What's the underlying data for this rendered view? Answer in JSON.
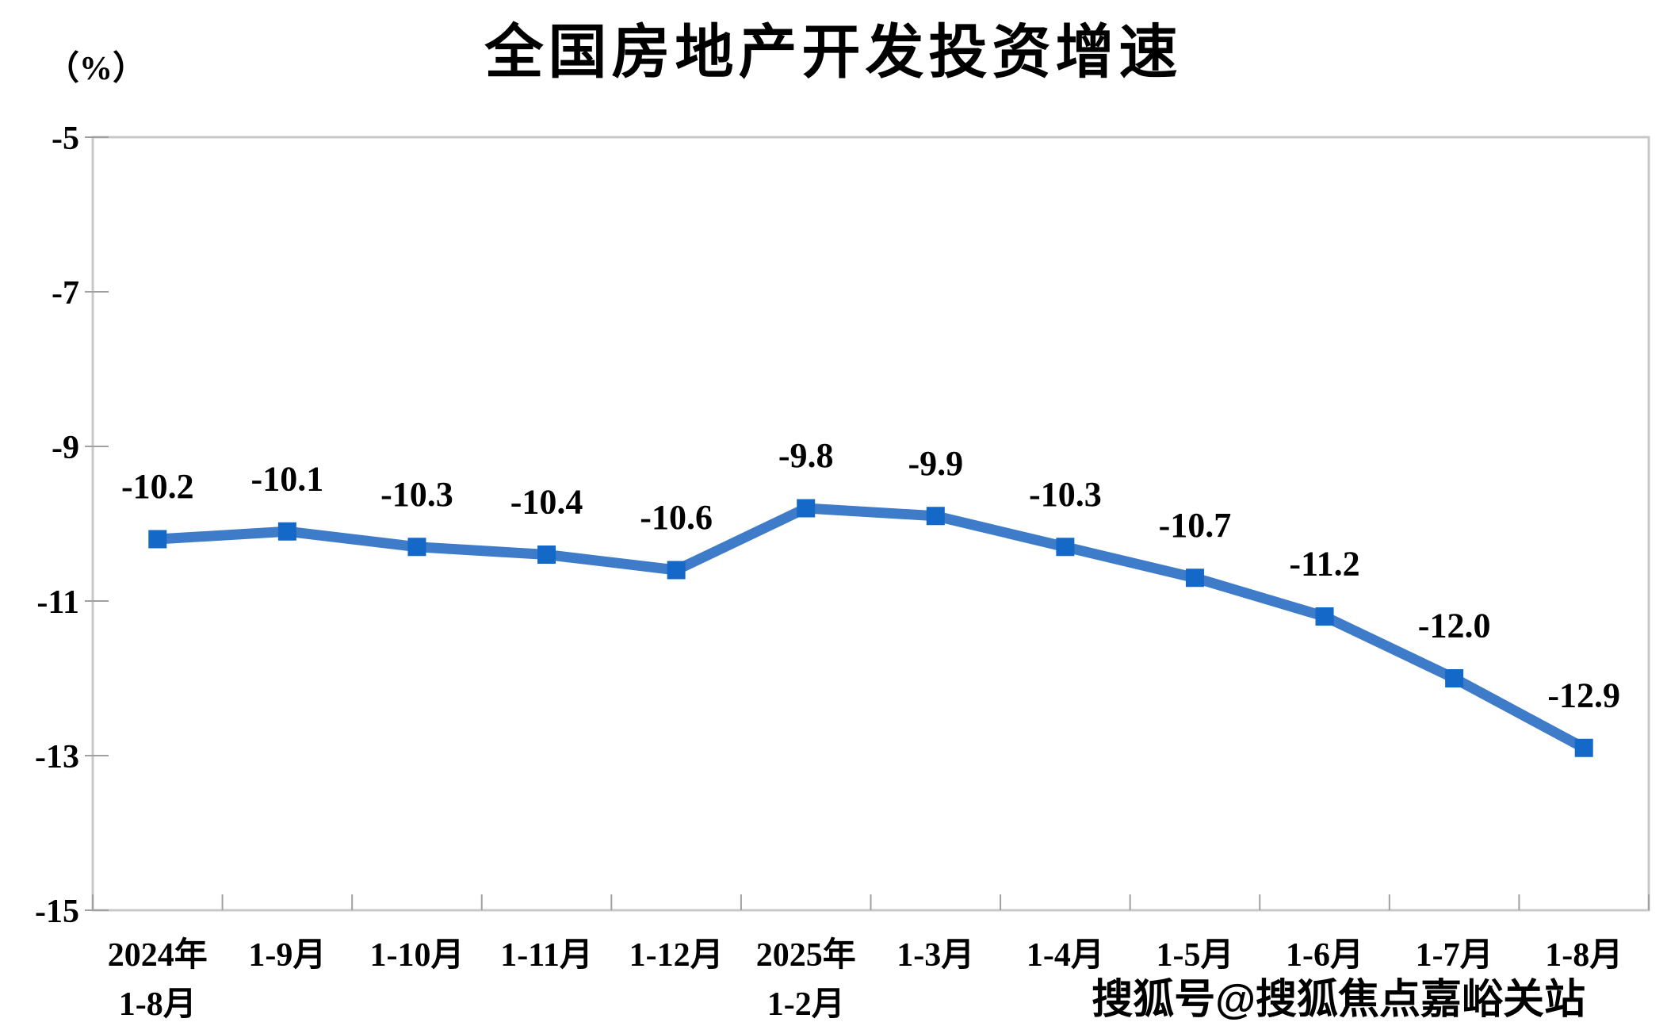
{
  "chart": {
    "title": "全国房地产开发投资增速",
    "unit_label": "（%）",
    "watermark": "搜狐号@搜狐焦点嘉峪关站"
  },
  "chart_data": {
    "type": "line",
    "title": "全国房地产开发投资增速",
    "ylabel": "（%）",
    "categories": [
      "2024年\n1-8月",
      "1-9月",
      "1-10月",
      "1-11月",
      "1-12月",
      "2025年\n1-2月",
      "1-3月",
      "1-4月",
      "1-5月",
      "1-6月",
      "1-7月",
      "1-8月"
    ],
    "values": [
      -10.2,
      -10.1,
      -10.3,
      -10.4,
      -10.6,
      -9.8,
      -9.9,
      -10.3,
      -10.7,
      -11.2,
      -12.0,
      -12.9
    ],
    "data_labels": [
      "-10.2",
      "-10.1",
      "-10.3",
      "-10.4",
      "-10.6",
      "-9.8",
      "-9.9",
      "-10.3",
      "-10.7",
      "-11.2",
      "-12.0",
      "-12.9"
    ],
    "ylim": [
      -15,
      -5
    ],
    "yticks": [
      -5,
      -7,
      -9,
      -11,
      -13,
      -15
    ],
    "grid": false,
    "legend": false,
    "marker_shape": "square",
    "colors": {
      "line": "#3E7CC9",
      "marker": "#1468C8",
      "axis_border": "#C8C8C8",
      "tick": "#A0A0A0",
      "text": "#000000"
    }
  }
}
